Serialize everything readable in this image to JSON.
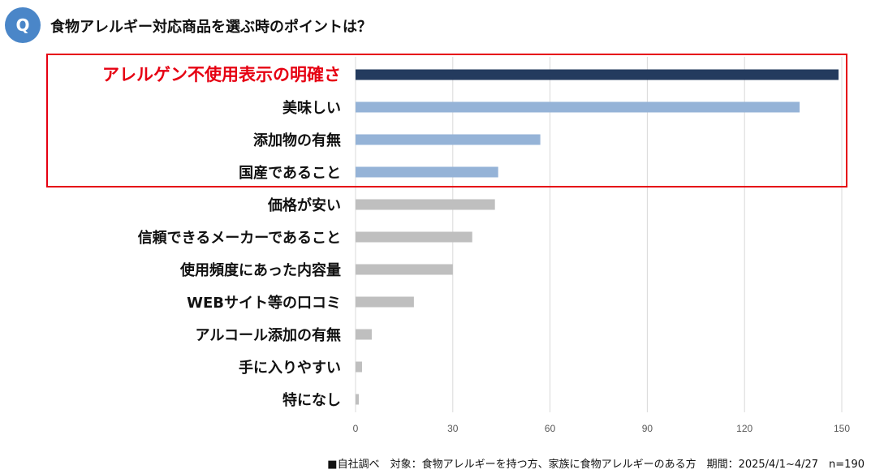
{
  "question": {
    "badge": "Q",
    "title": "食物アレルギー対応商品を選ぶ時のポイントは？"
  },
  "footer": "■自社調べ　対象：食物アレルギーを持つ方、家族に食物アレルギーのある方　期間：2025/4/1~4/27　n=190",
  "colors": {
    "top": "#243b5e",
    "highlight": "#95b3d7",
    "other": "#bfbfbf",
    "box": "#e60012"
  },
  "chart_data": {
    "type": "bar",
    "orientation": "horizontal",
    "categories": [
      "アレルゲン不使用表示の明確さ",
      "美味しい",
      "添加物の有無",
      "国産であること",
      "価格が安い",
      "信頼できるメーカーであること",
      "使用頻度にあった内容量",
      "WEBサイト等の口コミ",
      "アルコール添加の有無",
      "手に入りやすい",
      "特になし"
    ],
    "values": [
      149,
      137,
      57,
      44,
      43,
      36,
      30,
      18,
      5,
      2,
      1
    ],
    "xlim": [
      0,
      150
    ],
    "xticks": [
      0,
      30,
      60,
      90,
      120,
      150
    ],
    "grid": true,
    "highlighted_count": 4
  }
}
